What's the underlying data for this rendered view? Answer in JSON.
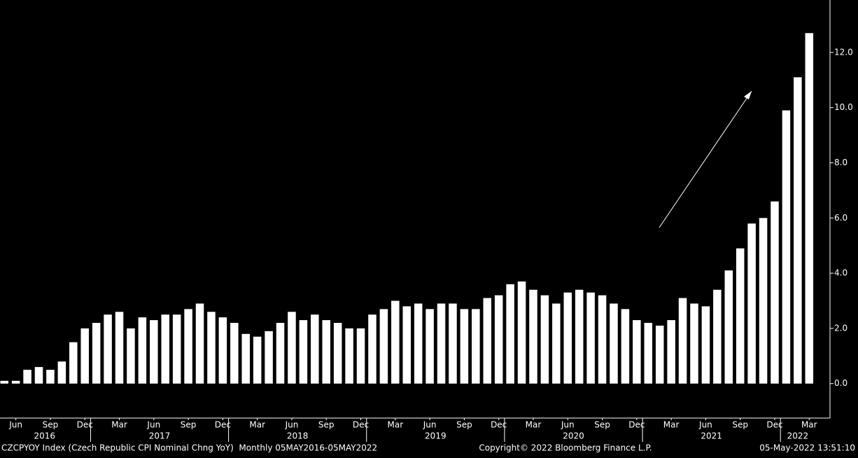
{
  "chart_data": {
    "type": "bar",
    "categories": [
      null,
      "Jun",
      null,
      null,
      "Sep",
      null,
      null,
      "Dec",
      null,
      null,
      "Mar",
      null,
      null,
      "Jun",
      null,
      null,
      "Sep",
      null,
      null,
      "Dec",
      null,
      null,
      "Mar",
      null,
      null,
      "Jun",
      null,
      null,
      "Sep",
      null,
      null,
      "Dec",
      null,
      null,
      "Mar",
      null,
      null,
      "Jun",
      null,
      null,
      "Sep",
      null,
      null,
      "Dec",
      null,
      null,
      "Mar",
      null,
      null,
      "Jun",
      null,
      null,
      "Sep",
      null,
      null,
      "Dec",
      null,
      null,
      "Mar",
      null,
      null,
      "Jun",
      null,
      null,
      "Sep",
      null,
      null,
      "Dec",
      null,
      null,
      "Mar"
    ],
    "years": [
      "2016",
      "2017",
      "2018",
      "2019",
      "2020",
      "2021",
      "2022"
    ],
    "values": [
      0.1,
      0.1,
      0.5,
      0.6,
      0.5,
      0.8,
      1.5,
      2.0,
      2.2,
      2.5,
      2.6,
      2.0,
      2.4,
      2.3,
      2.5,
      2.5,
      2.7,
      2.9,
      2.6,
      2.4,
      2.2,
      1.8,
      1.7,
      1.9,
      2.2,
      2.6,
      2.3,
      2.5,
      2.3,
      2.2,
      2.0,
      2.0,
      2.5,
      2.7,
      3.0,
      2.8,
      2.9,
      2.7,
      2.9,
      2.9,
      2.7,
      2.7,
      3.1,
      3.2,
      3.6,
      3.7,
      3.4,
      3.2,
      2.9,
      3.3,
      3.4,
      3.3,
      3.2,
      2.9,
      2.7,
      2.3,
      2.2,
      2.1,
      2.3,
      3.1,
      2.9,
      2.8,
      3.4,
      4.1,
      4.9,
      5.8,
      6.0,
      6.6,
      9.9,
      11.1,
      12.7
    ],
    "color": "#ffffff",
    "ylim": [
      -1.25,
      13.9
    ],
    "yticks": [
      {
        "value": 0,
        "label": "0.0"
      },
      {
        "value": 2,
        "label": "2.0"
      },
      {
        "value": 4,
        "label": "4.0"
      },
      {
        "value": 6,
        "label": "6.0"
      },
      {
        "value": 8,
        "label": "8.0"
      },
      {
        "value": 10,
        "label": "10.0"
      },
      {
        "value": 12,
        "label": "12.0"
      }
    ],
    "footer_left": "CZCPYOY Index (Czech Republic CPI Nominal Chng YoY)  Monthly 05MAY2016-05MAY2022",
    "footer_center": "Copyright© 2022 Bloomberg Finance L.P.",
    "footer_right": "05-May-2022 13:51:10"
  }
}
